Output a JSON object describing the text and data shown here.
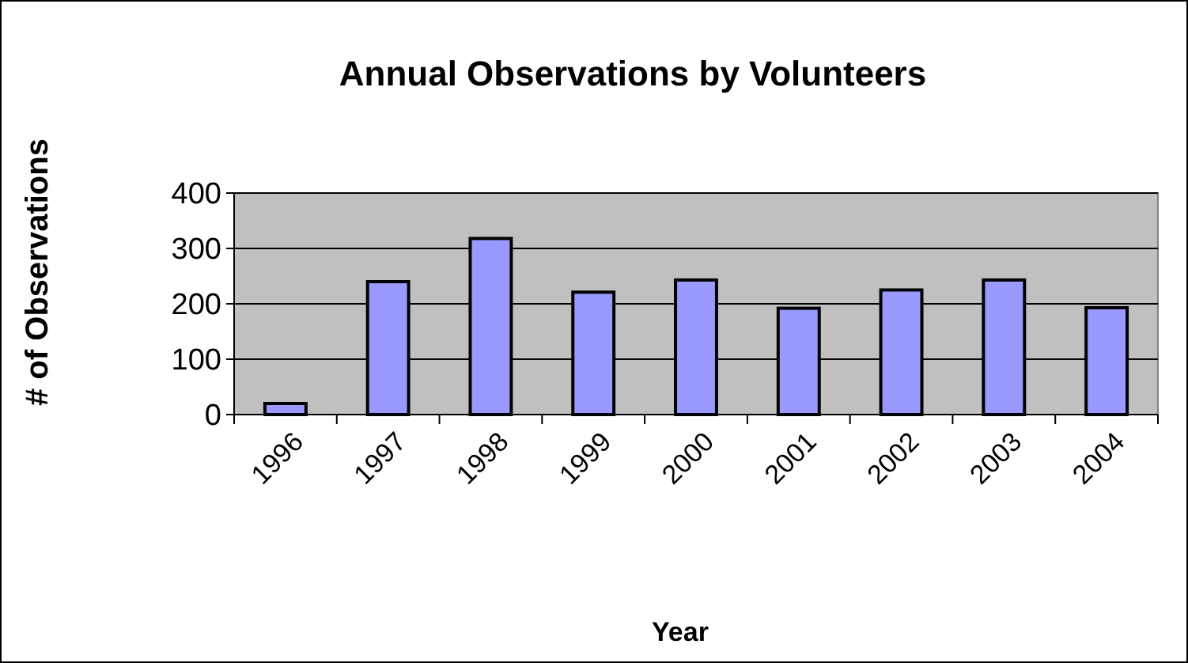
{
  "chart_data": {
    "type": "bar",
    "title": "Annual Observations by Volunteers",
    "xlabel": "Year",
    "ylabel": "# of Observations",
    "categories": [
      "1996",
      "1997",
      "1998",
      "1999",
      "2000",
      "2001",
      "2002",
      "2003",
      "2004"
    ],
    "values": [
      20,
      240,
      318,
      221,
      243,
      192,
      225,
      243,
      193
    ],
    "color": "#9999ff",
    "ylim": [
      0,
      400
    ],
    "yticks": [
      0,
      100,
      200,
      300,
      400
    ],
    "grid": "y"
  }
}
